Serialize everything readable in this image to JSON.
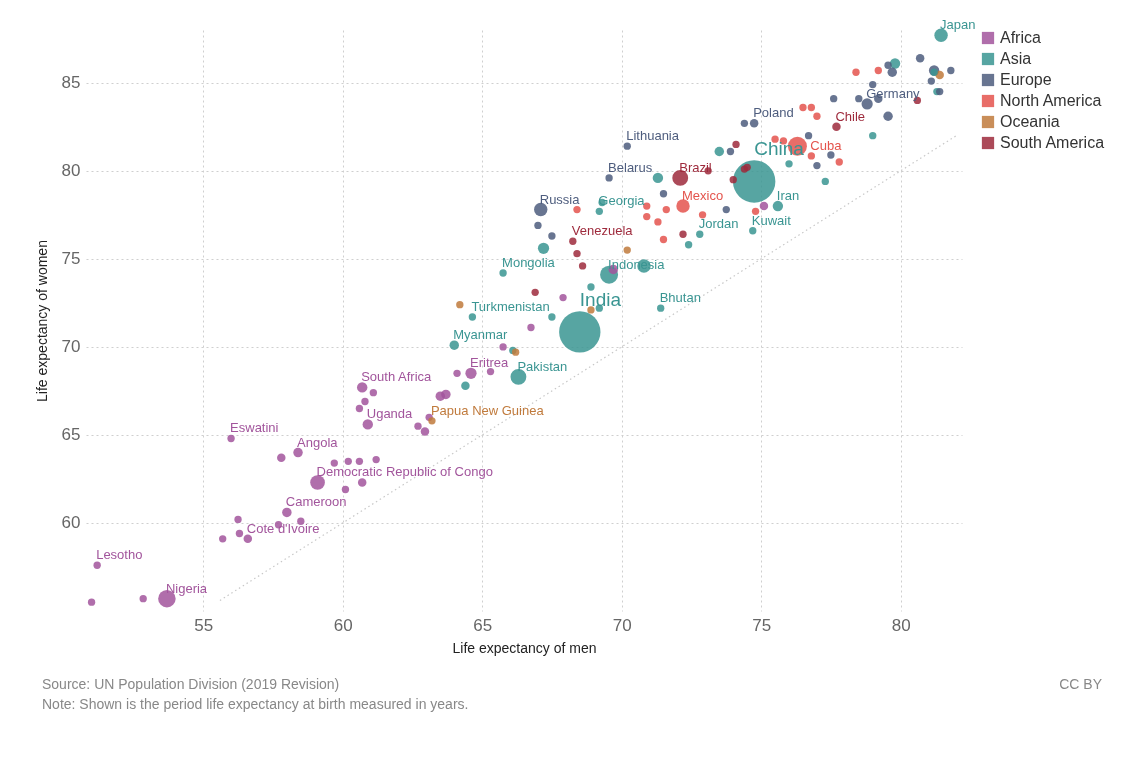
{
  "chart_data": {
    "type": "bubble",
    "xlabel": "Life expectancy of men",
    "ylabel": "Life expectancy of women",
    "xlim": [
      50.8,
      82.2
    ],
    "ylim": [
      55,
      88
    ],
    "xticks": [
      55,
      60,
      65,
      70,
      75,
      80
    ],
    "yticks": [
      60,
      65,
      70,
      75,
      80,
      85
    ],
    "grid": true,
    "legend": "top right",
    "series": [
      {
        "name": "Africa",
        "color": "#a2559c",
        "x": [
          51.0,
          51.2,
          52.85,
          53.7,
          55.7,
          56.0,
          56.25,
          56.3,
          56.6,
          57.7,
          57.8,
          58.0,
          58.4,
          58.5,
          59.1,
          59.7,
          60.1,
          60.2,
          60.6,
          60.6,
          60.7,
          60.7,
          60.8,
          60.9,
          61.1,
          61.2,
          62.7,
          62.95,
          63.1,
          63.5,
          63.7,
          64.1,
          64.6,
          65.3,
          65.75,
          66.75,
          67.9,
          69.7,
          75.1
        ],
        "values": [
          55.5,
          57.6,
          55.7,
          55.7,
          59.1,
          64.8,
          60.2,
          59.4,
          59.1,
          59.9,
          63.7,
          60.6,
          64.0,
          60.1,
          62.3,
          63.4,
          61.9,
          63.5,
          63.5,
          66.5,
          62.3,
          67.7,
          66.9,
          65.6,
          67.4,
          63.6,
          65.5,
          65.2,
          66.0,
          67.2,
          67.3,
          68.5,
          68.5,
          68.6,
          70.0,
          71.1,
          72.8,
          74.4,
          78.0
        ],
        "sizes": [
          0.03,
          0.03,
          0.03,
          0.17,
          0.03,
          0.03,
          0.03,
          0.03,
          0.04,
          0.03,
          0.04,
          0.05,
          0.05,
          0.03,
          0.12,
          0.03,
          0.03,
          0.03,
          0.03,
          0.03,
          0.04,
          0.06,
          0.03,
          0.06,
          0.03,
          0.03,
          0.03,
          0.04,
          0.03,
          0.05,
          0.05,
          0.03,
          0.07,
          0.03,
          0.03,
          0.03,
          0.03,
          0.05,
          0.04
        ]
      },
      {
        "name": "Asia",
        "color": "#3a9592",
        "x": [
          64.0,
          64.4,
          64.65,
          65.75,
          66.1,
          66.3,
          67.2,
          67.5,
          68.5,
          68.9,
          69.2,
          69.2,
          69.3,
          69.55,
          70.8,
          71.3,
          71.4,
          72.4,
          72.8,
          73.5,
          74.7,
          74.75,
          75.6,
          76.0,
          77.3,
          79.0,
          79.8,
          81.2,
          81.3,
          81.45
        ],
        "values": [
          70.1,
          67.8,
          71.7,
          74.2,
          69.8,
          68.3,
          75.6,
          71.7,
          70.85,
          73.4,
          72.2,
          77.7,
          78.2,
          74.1,
          74.6,
          79.6,
          72.2,
          75.8,
          76.4,
          81.1,
          76.6,
          79.4,
          78.0,
          80.4,
          79.4,
          82.0,
          86.1,
          85.6,
          84.5,
          87.7
        ],
        "sizes": [
          0.05,
          0.04,
          0.03,
          0.03,
          0.03,
          0.14,
          0.07,
          0.03,
          0.95,
          0.03,
          0.03,
          0.03,
          0.03,
          0.18,
          0.1,
          0.06,
          0.03,
          0.03,
          0.03,
          0.05,
          0.03,
          1,
          0.06,
          0.03,
          0.03,
          0.03,
          0.06,
          0.03,
          0.03,
          0.1
        ]
      },
      {
        "name": "Europe",
        "color": "#4e5d7e",
        "x": [
          67.0,
          67.1,
          67.5,
          69.55,
          70.2,
          71.5,
          73.75,
          73.9,
          74.4,
          74.75,
          76.7,
          77.0,
          77.5,
          77.6,
          78.5,
          78.8,
          79.0,
          79.2,
          79.55,
          79.55,
          79.7,
          80.7,
          81.1,
          81.2,
          81.4,
          81.8
        ],
        "values": [
          76.9,
          77.8,
          76.3,
          79.6,
          81.4,
          78.7,
          77.8,
          81.1,
          82.7,
          82.7,
          82.0,
          80.3,
          80.9,
          84.1,
          84.1,
          83.8,
          84.9,
          84.1,
          83.1,
          86.0,
          85.6,
          86.4,
          85.1,
          85.7,
          84.5,
          85.7
        ],
        "sizes": [
          0.03,
          0.1,
          0.03,
          0.03,
          0.03,
          0.03,
          0.03,
          0.03,
          0.03,
          0.04,
          0.03,
          0.03,
          0.03,
          0.03,
          0.03,
          0.07,
          0.03,
          0.04,
          0.05,
          0.03,
          0.05,
          0.04,
          0.03,
          0.06,
          0.03,
          0.03
        ]
      },
      {
        "name": "North America",
        "color": "#e4544d",
        "x": [
          68.4,
          70.9,
          70.9,
          71.3,
          71.5,
          71.6,
          72.2,
          72.9,
          74.8,
          75.5,
          75.8,
          76.3,
          76.5,
          76.8,
          76.8,
          77.0,
          77.8,
          78.4,
          79.2
        ],
        "values": [
          77.8,
          78.0,
          77.4,
          77.1,
          76.1,
          77.8,
          78.0,
          77.5,
          77.7,
          81.8,
          81.7,
          81.4,
          83.6,
          83.6,
          80.85,
          83.1,
          80.5,
          85.6,
          85.7
        ],
        "sizes": [
          0.03,
          0.03,
          0.03,
          0.03,
          0.03,
          0.03,
          0.1,
          0.03,
          0.03,
          0.03,
          0.03,
          0.2,
          0.03,
          0.03,
          0.03,
          0.03,
          0.03,
          0.03,
          0.03
        ]
      },
      {
        "name": "Oceania",
        "color": "#c07a3c",
        "x": [
          63.2,
          64.2,
          66.2,
          68.9,
          70.2,
          81.4
        ],
        "values": [
          65.8,
          72.4,
          69.7,
          72.1,
          75.5,
          85.45
        ],
        "sizes": [
          0.03,
          0.03,
          0.03,
          0.03,
          0.03,
          0.04
        ]
      },
      {
        "name": "South America",
        "color": "#9e2a3c",
        "x": [
          66.9,
          68.25,
          68.4,
          68.6,
          72.1,
          72.2,
          73.1,
          74.0,
          74.1,
          74.4,
          74.5,
          77.7,
          80.6
        ],
        "values": [
          73.1,
          76.0,
          75.3,
          74.6,
          79.6,
          76.4,
          80.0,
          79.5,
          81.5,
          80.1,
          80.2,
          82.5,
          84.0
        ],
        "sizes": [
          0.03,
          0.03,
          0.03,
          0.03,
          0.14,
          0.03,
          0.03,
          0.03,
          0.03,
          0.03,
          0.03,
          0.04,
          0.03
        ]
      },
      {
        "type": "line",
        "color": "#c8c8c8",
        "line_style": "dotted",
        "x": [
          55.6,
          82.0
        ],
        "values": [
          55.6,
          82.0
        ]
      }
    ],
    "annotations": [
      {
        "text": "Lesotho",
        "x": 51.2,
        "y": 57.6
      },
      {
        "text": "Nigeria",
        "x": 53.7,
        "y": 55.7
      },
      {
        "text": "Eswatini",
        "x": 56.0,
        "y": 64.8
      },
      {
        "text": "Cote d'Ivoire",
        "x": 56.6,
        "y": 59.1
      },
      {
        "text": "Cameroon",
        "x": 58.0,
        "y": 60.6
      },
      {
        "text": "Angola",
        "x": 58.4,
        "y": 64.0
      },
      {
        "text": "Democratic Republic of Congo",
        "x": 59.1,
        "y": 62.3
      },
      {
        "text": "South Africa",
        "x": 60.7,
        "y": 67.7
      },
      {
        "text": "Uganda",
        "x": 60.9,
        "y": 65.6
      },
      {
        "text": "Papua New Guinea",
        "x": 63.2,
        "y": 65.8
      },
      {
        "text": "Eritrea",
        "x": 64.6,
        "y": 68.5
      },
      {
        "text": "Myanmar",
        "x": 64.0,
        "y": 70.1
      },
      {
        "text": "Turkmenistan",
        "x": 64.65,
        "y": 71.7
      },
      {
        "text": "Mongolia",
        "x": 65.75,
        "y": 74.2
      },
      {
        "text": "Pakistan",
        "x": 66.3,
        "y": 68.3
      },
      {
        "text": "India",
        "x": 68.5,
        "y": 70.85
      },
      {
        "text": "Indonesia",
        "x": 69.55,
        "y": 74.1
      },
      {
        "text": "Bhutan",
        "x": 71.4,
        "y": 72.2
      },
      {
        "text": "Russia",
        "x": 67.1,
        "y": 77.8
      },
      {
        "text": "Venezuela",
        "x": 68.25,
        "y": 76.0
      },
      {
        "text": "Georgia",
        "x": 69.2,
        "y": 77.7
      },
      {
        "text": "Belarus",
        "x": 69.55,
        "y": 79.6
      },
      {
        "text": "Lithuania",
        "x": 70.2,
        "y": 81.4
      },
      {
        "text": "Mexico",
        "x": 72.2,
        "y": 78.0
      },
      {
        "text": "Brazil",
        "x": 72.1,
        "y": 79.6
      },
      {
        "text": "Jordan",
        "x": 72.8,
        "y": 76.4
      },
      {
        "text": "Kuwait",
        "x": 74.7,
        "y": 76.6
      },
      {
        "text": "China",
        "x": 74.75,
        "y": 79.4
      },
      {
        "text": "Iran",
        "x": 75.6,
        "y": 78.0
      },
      {
        "text": "Poland",
        "x": 74.75,
        "y": 82.7
      },
      {
        "text": "Cuba",
        "x": 76.8,
        "y": 80.85
      },
      {
        "text": "Chile",
        "x": 77.7,
        "y": 82.5
      },
      {
        "text": "Germany",
        "x": 78.8,
        "y": 83.8
      },
      {
        "text": "Japan",
        "x": 81.45,
        "y": 87.7
      },
      "Source: UN Population Division (2019 Revision)",
      "Note: Shown is the period life expectancy at birth measured in years.",
      "CC BY"
    ]
  }
}
